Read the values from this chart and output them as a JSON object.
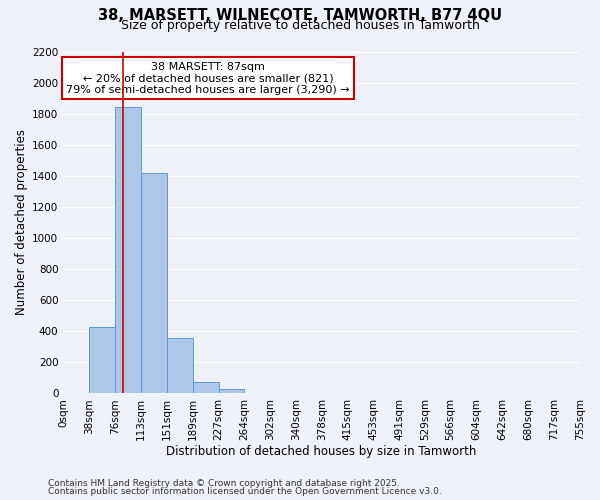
{
  "title_line1": "38, MARSETT, WILNECOTE, TAMWORTH, B77 4QU",
  "title_line2": "Size of property relative to detached houses in Tamworth",
  "xlabel": "Distribution of detached houses by size in Tamworth",
  "ylabel": "Number of detached properties",
  "bin_edges": [
    0,
    38,
    76,
    113,
    151,
    189,
    227,
    264,
    302,
    340,
    378,
    415,
    453,
    491,
    529,
    566,
    604,
    642,
    680,
    717,
    755
  ],
  "bin_counts": [
    0,
    430,
    1840,
    1415,
    355,
    75,
    25,
    0,
    0,
    0,
    0,
    0,
    0,
    0,
    0,
    0,
    0,
    0,
    0,
    0
  ],
  "bar_color": "#aec6e8",
  "bar_edge_color": "#5b9bd5",
  "property_size": 87,
  "vline_color": "#cc0000",
  "annotation_line1": "38 MARSETT: 87sqm",
  "annotation_line2": "← 20% of detached houses are smaller (821)",
  "annotation_line3": "79% of semi-detached houses are larger (3,290) →",
  "annotation_box_color": "#ffffff",
  "annotation_box_edge_color": "#cc0000",
  "ylim": [
    0,
    2200
  ],
  "yticks": [
    0,
    200,
    400,
    600,
    800,
    1000,
    1200,
    1400,
    1600,
    1800,
    2000,
    2200
  ],
  "background_color": "#eef2f8",
  "grid_color": "#ffffff",
  "footer_line1": "Contains HM Land Registry data © Crown copyright and database right 2025.",
  "footer_line2": "Contains public sector information licensed under the Open Government Licence v3.0.",
  "title_fontsize": 10.5,
  "subtitle_fontsize": 9,
  "axis_label_fontsize": 8.5,
  "tick_fontsize": 7.5,
  "annotation_fontsize": 8,
  "footer_fontsize": 6.5
}
